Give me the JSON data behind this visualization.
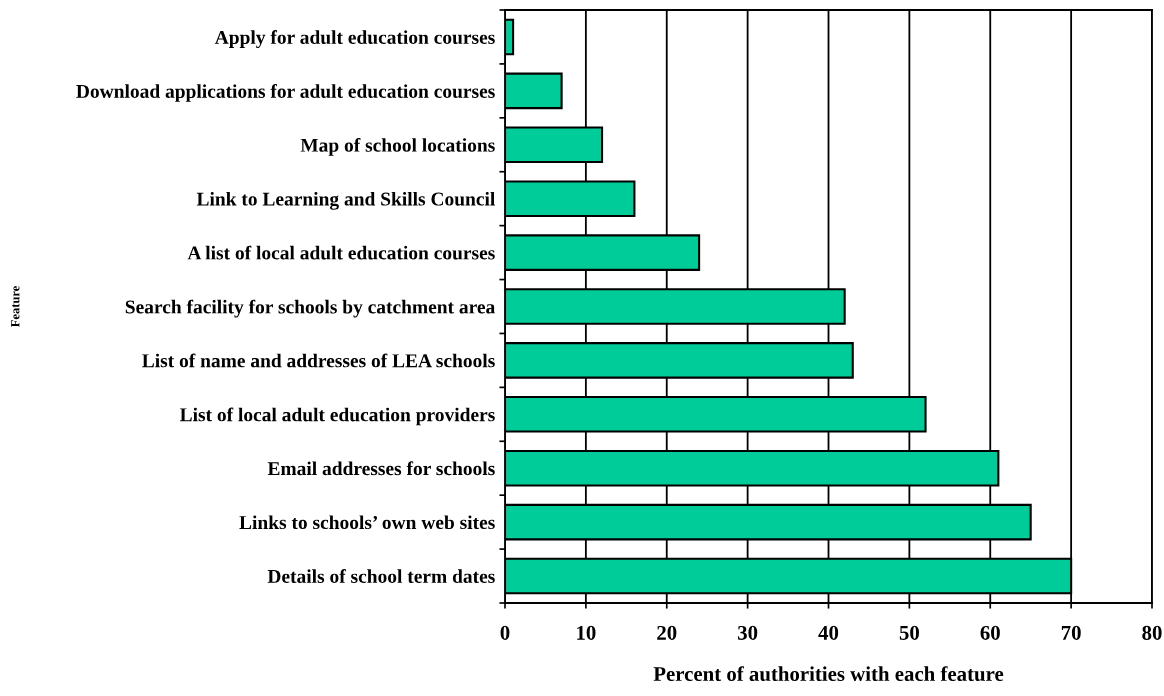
{
  "chart_data": {
    "type": "bar",
    "orientation": "horizontal",
    "categories": [
      "Apply for adult education courses",
      "Download applications for adult education courses",
      "Map of school locations",
      "Link to Learning and Skills Council",
      "A list of local adult education courses",
      "Search facility for schools by catchment area",
      "List of name and addresses of LEA schools",
      "List of local adult education providers",
      "Email addresses for schools",
      "Links to schools’ own web sites",
      "Details of school term dates"
    ],
    "values": [
      1,
      7,
      12,
      16,
      24,
      42,
      43,
      52,
      61,
      65,
      70
    ],
    "color": "#00cc99",
    "xlabel": "Percent of authorities with each feature",
    "ylabel": "Feature",
    "xlim": [
      0,
      80
    ],
    "xticks": [
      0,
      10,
      20,
      30,
      40,
      50,
      60,
      70,
      80
    ],
    "grid": "x"
  }
}
